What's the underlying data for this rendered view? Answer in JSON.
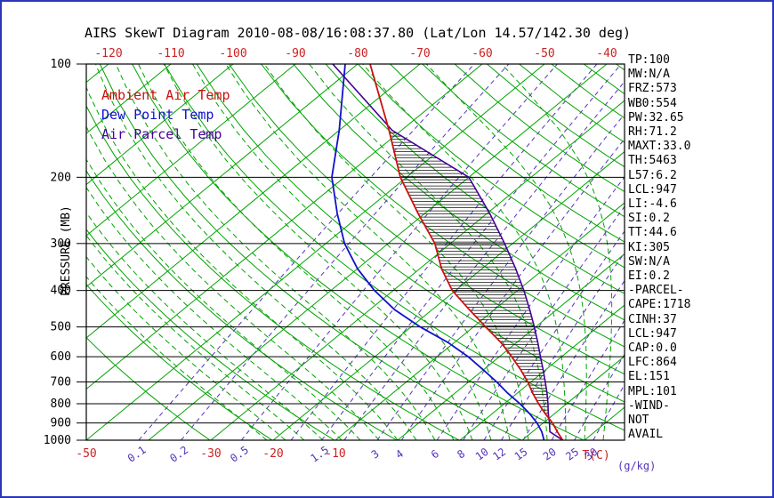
{
  "title": "AIRS SkewT Diagram 2010-08-08/16:08:37.80 (Lat/Lon 14.57/142.30 deg)",
  "colors": {
    "isotherm": "#00a400",
    "dry_adiabat": "#00a400",
    "moist_adiabat": "#00a400",
    "mixing_ratio": "#5533bb",
    "ambient": "#cc1111",
    "dewpoint": "#1111cc",
    "parcel": "#440099",
    "red_label": "#cc2222",
    "axis": "#000000",
    "frame": "#2b35b8"
  },
  "legend": {
    "ambient": "Ambient Air Temp",
    "dewpoint": "Dew Point Temp",
    "parcel": "Air Parcel Temp"
  },
  "axes": {
    "pressure_label": "PRESSURE (MB)",
    "pressure_ticks": [
      100,
      200,
      300,
      400,
      500,
      600,
      700,
      800,
      900,
      1000
    ],
    "top_temp_ticks": [
      -120,
      -110,
      -100,
      -90,
      -80,
      -70,
      -60,
      -50,
      -40
    ],
    "bottom_temp_ticks": [
      -50,
      -30,
      -20,
      -10
    ],
    "temp_unit": "T(C)",
    "mixing_unit": "(g/kg)"
  },
  "stats": [
    "TP:100",
    "MW:N/A",
    "FRZ:573",
    "WB0:554",
    "PW:32.65",
    "RH:71.2",
    "MAXT:33.0",
    "TH:5463",
    "L57:6.2",
    "LCL:947",
    "LI:-4.6",
    "SI:0.2",
    "TT:44.6",
    "KI:305",
    "SW:N/A",
    "EI:0.2",
    "-PARCEL-",
    "CAPE:1718",
    "CINH:37",
    "LCL:947",
    "CAP:0.0",
    "LFC:864",
    "EL:151",
    "MPL:101",
    "-WIND-",
    "NOT",
    "AVAIL"
  ],
  "chart_data": {
    "type": "line",
    "title": "AIRS SkewT Diagram 2010-08-08/16:08:37.80 (Lat/Lon 14.57/142.30 deg)",
    "xlabel": "Temperature (C), 45-degree skewed axis",
    "ylabel": "Pressure (MB), logarithmic, 1000 at bottom to 100 at top",
    "x_range_at_surface_c": [
      -50,
      36
    ],
    "y_range_mb": [
      1000,
      100
    ],
    "grid": "skew-t log-p background",
    "isotherms_c": {
      "min": -120,
      "max": 40,
      "step": 10
    },
    "dry_adiabats_k": {
      "min": 243,
      "max": 453,
      "step": 10
    },
    "moist_adiabats_c": [
      -21,
      -18,
      -15,
      -12,
      -9,
      -6,
      -3,
      0,
      3,
      6,
      9,
      12,
      15,
      18,
      21,
      24,
      27,
      30,
      33
    ],
    "mixing_ratio_g_kg": [
      0.1,
      0.2,
      0.5,
      1,
      1.5,
      2,
      3,
      4,
      6,
      8,
      10,
      12,
      15,
      20,
      25,
      30
    ],
    "mixing_ratio_labels": [
      0.1,
      0.2,
      0.5,
      1.5,
      3,
      4,
      6,
      8,
      10,
      12,
      15,
      20,
      25,
      30
    ],
    "sounding": {
      "pressure_mb": [
        1000,
        950,
        900,
        850,
        800,
        750,
        700,
        650,
        600,
        550,
        500,
        450,
        400,
        350,
        300,
        250,
        200,
        150,
        100
      ],
      "ambient_c": [
        26.5,
        24,
        21.5,
        18.5,
        15.5,
        12.5,
        9.5,
        6,
        2,
        -2.5,
        -8,
        -14,
        -20.5,
        -26.5,
        -32.5,
        -41,
        -51,
        -62,
        -78
      ],
      "dewpoint_c": [
        23.5,
        21.5,
        19,
        16,
        12.5,
        8.5,
        4.5,
        0,
        -5,
        -11,
        -18.5,
        -26,
        -33,
        -40,
        -47,
        -54,
        -62,
        -70,
        -82
      ],
      "parcel_c": [
        26.5,
        22.8,
        21,
        19,
        17,
        14.8,
        12.3,
        9.6,
        6.6,
        3.4,
        -0.2,
        -4.3,
        -9,
        -14.6,
        -21.3,
        -29.5,
        -40,
        -61.5,
        -84
      ]
    },
    "hatch_region": {
      "p_from_mb": 864,
      "p_to_mb": 151,
      "meaning": "positive area between parcel and ambient temperature (CAPE)"
    },
    "levels": {
      "lcl_mb": 947,
      "lfc_mb": 864,
      "el_mb": 151,
      "mpl_mb": 101,
      "cape_j_kg": 1718,
      "cinh_j_kg": 37
    }
  }
}
